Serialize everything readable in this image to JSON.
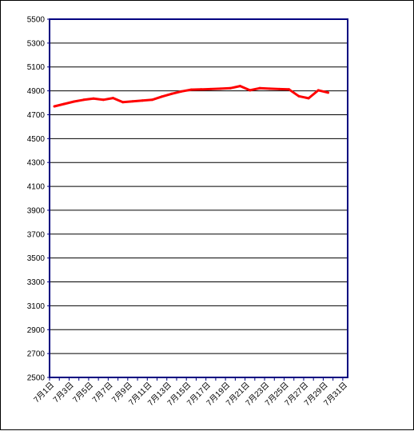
{
  "chart_data": {
    "type": "line",
    "title": "",
    "xlabel": "",
    "ylabel": "",
    "ylim": [
      2500,
      5500
    ],
    "yticks": [
      2500,
      2700,
      2900,
      3100,
      3300,
      3500,
      3700,
      3900,
      4100,
      4300,
      4500,
      4700,
      4900,
      5100,
      5300,
      5500
    ],
    "xtick_labels": [
      "7月1日",
      "7月3日",
      "7月5日",
      "7月7日",
      "7月9日",
      "7月11日",
      "7月13日",
      "7月15日",
      "7月17日",
      "7月19日",
      "7月21日",
      "7月23日",
      "7月25日",
      "7月27日",
      "7月29日",
      "7月31日"
    ],
    "grid": true,
    "legend": "none",
    "x_days": [
      1,
      2,
      3,
      4,
      5,
      6,
      7,
      8,
      9,
      10,
      11,
      12,
      13,
      14,
      15,
      16,
      17,
      18,
      19,
      20,
      21,
      22,
      23,
      24,
      25,
      26,
      27,
      28,
      29,
      30
    ],
    "series": [
      {
        "color": "#ff0000",
        "values": [
          4770,
          4790,
          4810,
          4825,
          4835,
          4825,
          4840,
          4805,
          4812,
          4818,
          4825,
          4852,
          4875,
          4895,
          4910,
          4912,
          4915,
          4918,
          4922,
          4940,
          4905,
          4922,
          4918,
          4915,
          4912,
          4855,
          4838,
          4905,
          4885,
          null
        ]
      }
    ]
  },
  "colors": {
    "plot_border": "#000080",
    "grid": "#000000",
    "line": "#ff0000"
  }
}
